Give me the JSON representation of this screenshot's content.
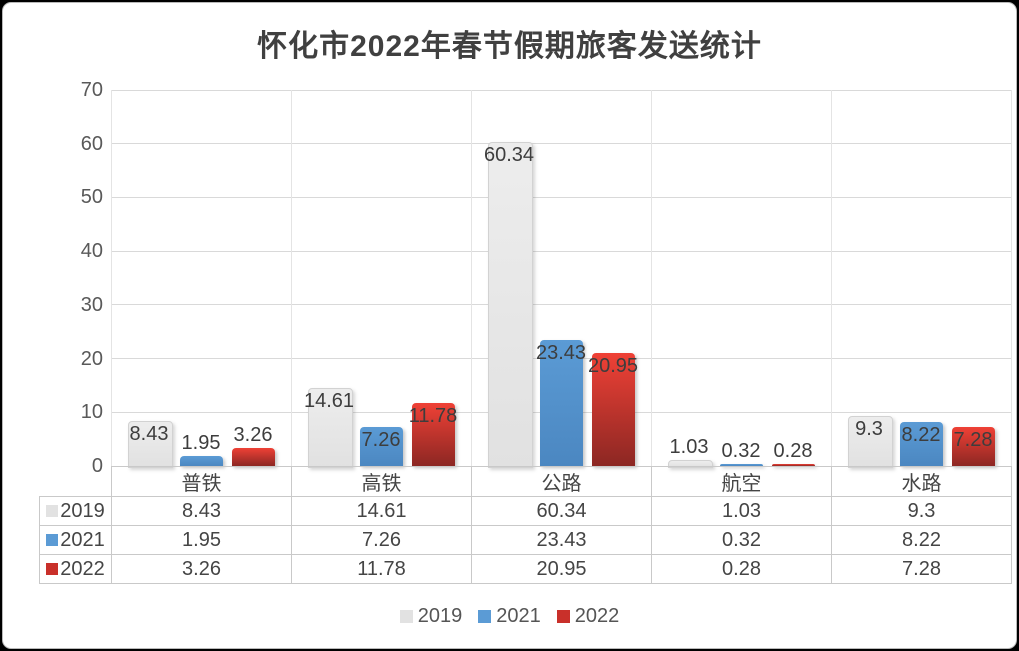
{
  "title": "怀化市2022年春节假期旅客发送统计",
  "chart_data": {
    "type": "bar",
    "title": "怀化市2022年春节假期旅客发送统计",
    "categories": [
      "普铁",
      "高铁",
      "公路",
      "航空",
      "水路"
    ],
    "series": [
      {
        "name": "2019",
        "values": [
          8.43,
          14.61,
          60.34,
          1.03,
          9.3
        ],
        "swatch": "#e2e2e2",
        "color_top": "#ededed",
        "color_bottom": "#e1e1e1"
      },
      {
        "name": "2021",
        "values": [
          1.95,
          7.26,
          23.43,
          0.32,
          8.22
        ],
        "swatch": "#5b9bd5",
        "color_top": "#5b9bd5",
        "color_bottom": "#4b87c1"
      },
      {
        "name": "2022",
        "values": [
          3.26,
          11.78,
          20.95,
          0.28,
          7.28
        ],
        "swatch": "#c9302a",
        "color_top": "#ef4136",
        "color_bottom": "#8c2723"
      }
    ],
    "xlabel": "",
    "ylabel": "",
    "ylim": [
      0,
      70
    ],
    "yticks": [
      0,
      10,
      20,
      30,
      40,
      50,
      60,
      70
    ],
    "grid": true,
    "gridline_color": "#d9d9d9",
    "data_labels": true,
    "data_table": true,
    "legend_position": "bottom",
    "text_color": "#595959"
  }
}
